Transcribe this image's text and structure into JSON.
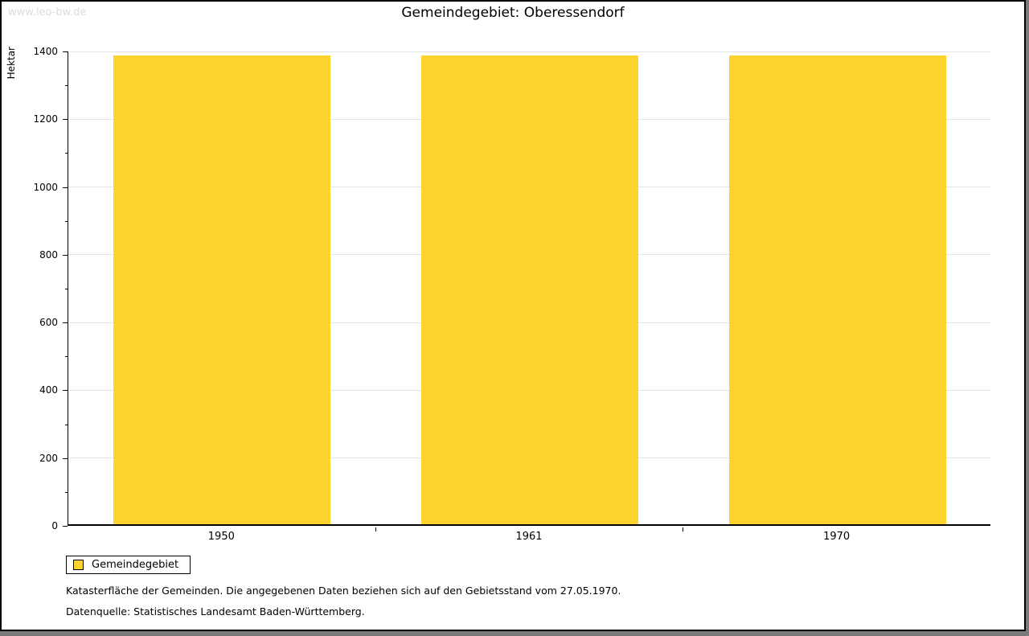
{
  "watermark": "www.leo-bw.de",
  "title": "Gemeindegebiet: Oberessendorf",
  "chart_data": {
    "type": "bar",
    "categories": [
      "1950",
      "1961",
      "1970"
    ],
    "series": [
      {
        "name": "Gemeindegebiet",
        "values": [
          1383,
          1383,
          1383
        ]
      }
    ],
    "title": "Gemeindegebiet: Oberessendorf",
    "xlabel": "",
    "ylabel": "Hektar",
    "ylim": [
      0,
      1400
    ],
    "ytick_step": 200,
    "minor_tick_step": 100,
    "grid": true,
    "bar_color": "#FCD32F",
    "legend_position": "bottom-left"
  },
  "legend": {
    "items": [
      {
        "label": "Gemeindegebiet",
        "color": "#FCD32F"
      }
    ]
  },
  "footer": {
    "line1": "Katasterfläche der Gemeinden. Die angegebenen Daten beziehen sich auf den Gebietsstand vom 27.05.1970.",
    "line2": "Datenquelle: Statistisches Landesamt Baden-Württemberg."
  }
}
